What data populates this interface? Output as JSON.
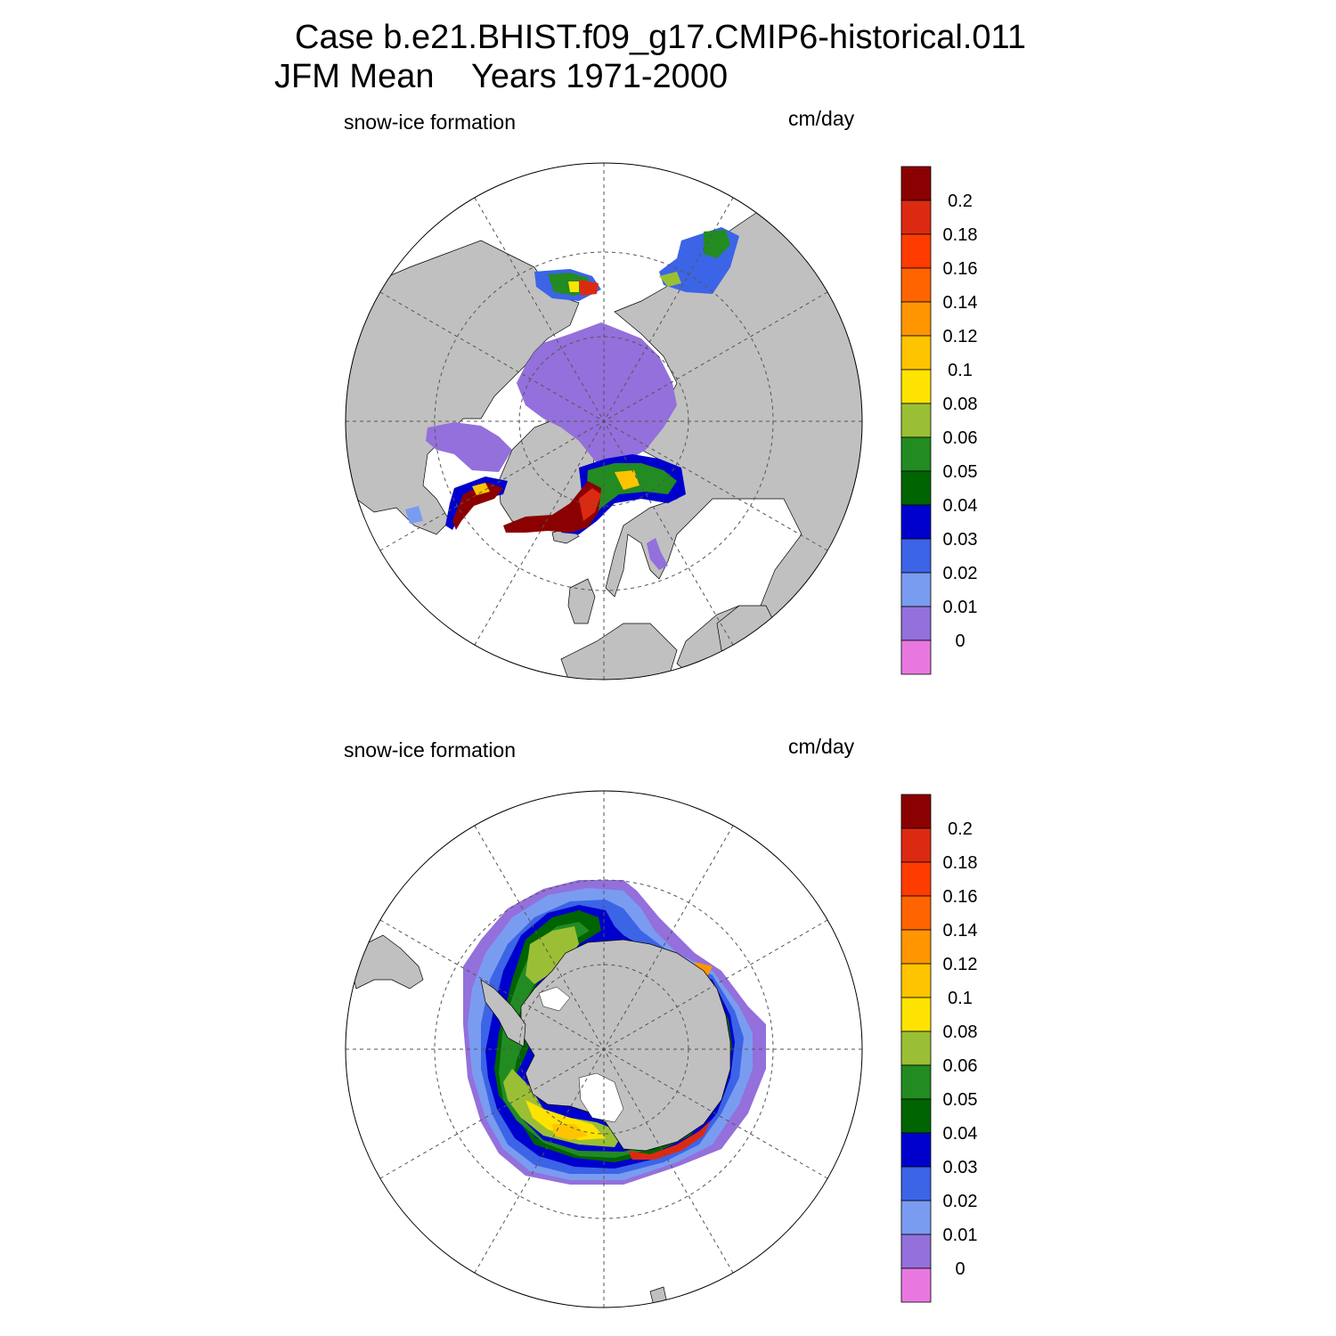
{
  "title": {
    "line1": "Case b.e21.BHIST.f09_g17.CMIP6-historical.011",
    "line2": "JFM Mean    Years 1971-2000"
  },
  "panels": [
    {
      "id": "north",
      "variable": "snow-ice formation",
      "units": "cm/day"
    },
    {
      "id": "south",
      "variable": "snow-ice formation",
      "units": "cm/day"
    }
  ],
  "colorbar": {
    "labels": [
      "0.2",
      "0.18",
      "0.16",
      "0.14",
      "0.12",
      "0.1",
      "0.08",
      "0.06",
      "0.05",
      "0.04",
      "0.03",
      "0.02",
      "0.01",
      "0"
    ],
    "colors_top_to_bottom": [
      "#8b0000",
      "#dc2a12",
      "#ff3c00",
      "#ff6400",
      "#ff9600",
      "#ffc400",
      "#ffe300",
      "#9bbf34",
      "#228b22",
      "#006400",
      "#0000cd",
      "#3c64e6",
      "#7a9cf0",
      "#9370db",
      "#e878e0"
    ]
  },
  "colors": {
    "land": "#c0c0c0",
    "background": "#ffffff",
    "gridline": "#555555"
  }
}
